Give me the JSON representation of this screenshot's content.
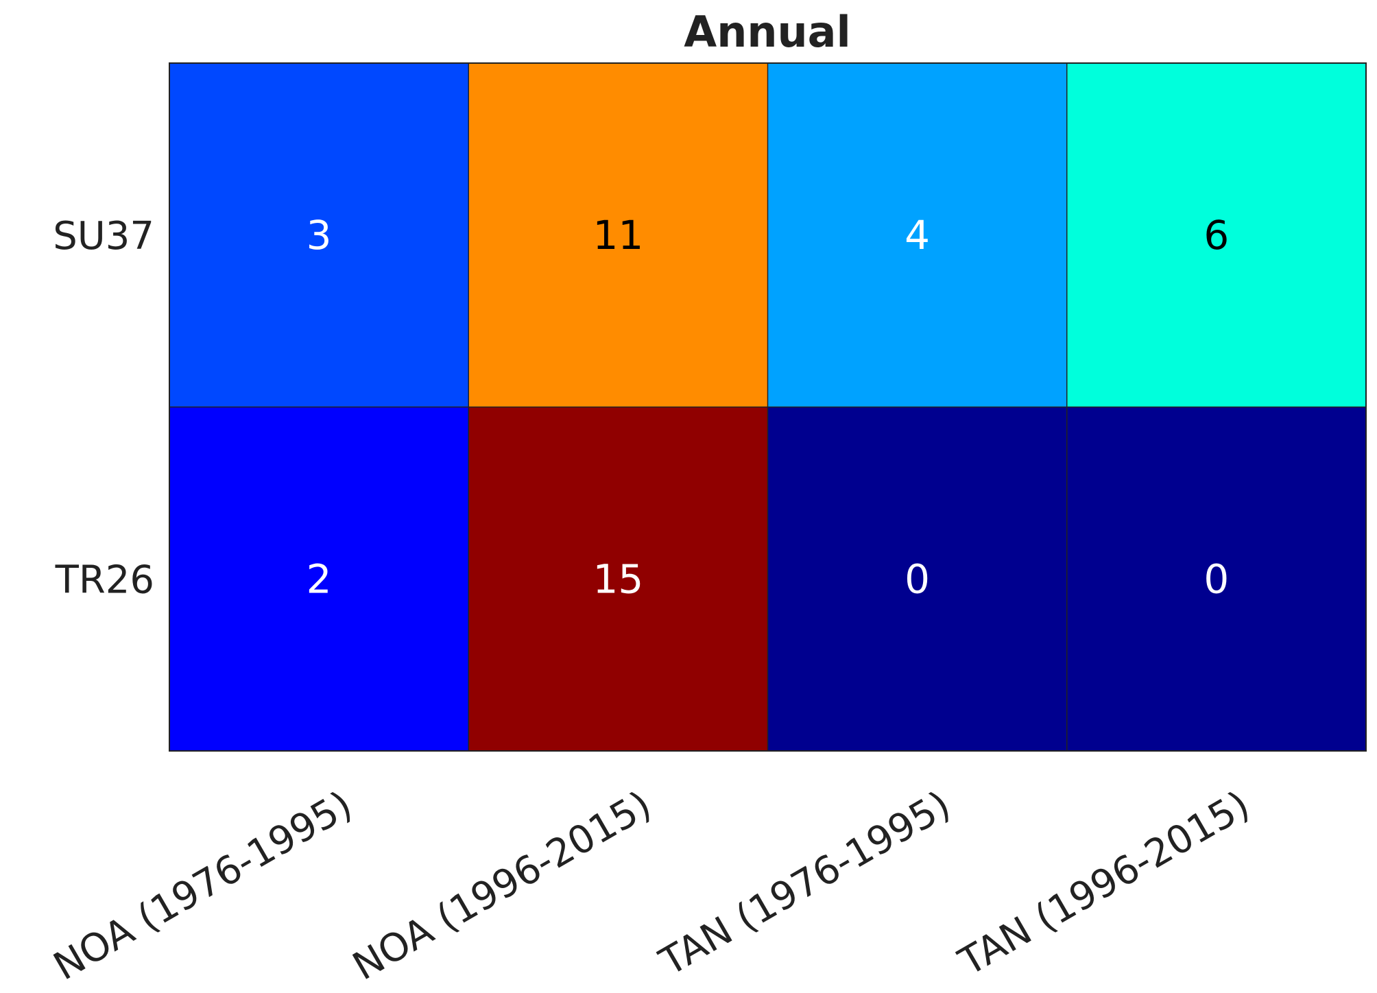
{
  "chart_data": {
    "type": "heatmap",
    "title": "Annual",
    "xlabel": "",
    "ylabel": "",
    "colormap": "jet",
    "value_range": [
      0,
      15
    ],
    "x_categories": [
      "NOA (1976-1995)",
      "NOA (1996-2015)",
      "TAN (1976-1995)",
      "TAN (1996-2015)"
    ],
    "y_categories": [
      "SU37",
      "TR26"
    ],
    "values": [
      [
        3,
        11,
        4,
        6
      ],
      [
        2,
        15,
        0,
        0
      ]
    ],
    "cell_colors": [
      [
        "#0048ff",
        "#ff8c00",
        "#00a2ff",
        "#00ffdc"
      ],
      [
        "#0000ff",
        "#900000",
        "#00008f",
        "#00008f"
      ]
    ],
    "label_colors": [
      [
        "#ffffff",
        "#000000",
        "#ffffff",
        "#000000"
      ],
      [
        "#ffffff",
        "#ffffff",
        "#ffffff",
        "#ffffff"
      ]
    ],
    "grid": true,
    "legend": "none"
  }
}
